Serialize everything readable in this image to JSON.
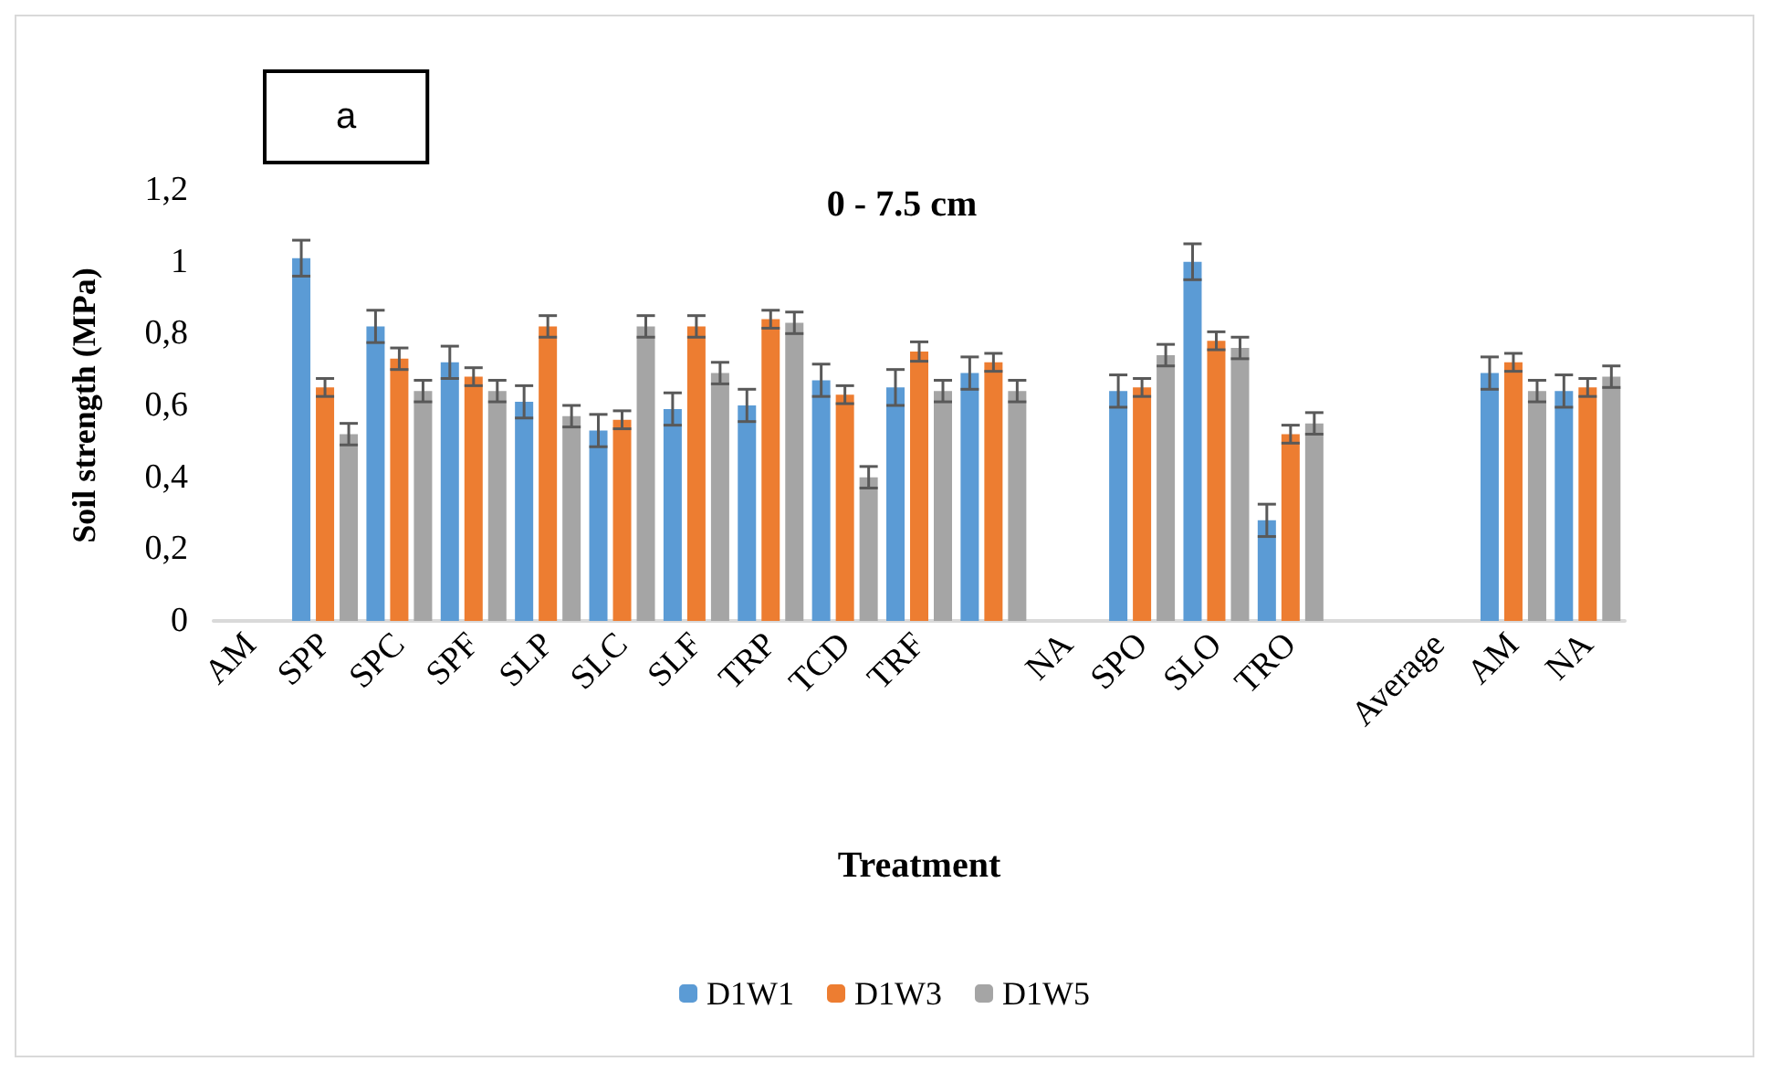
{
  "chart_data": {
    "type": "bar",
    "title": "0 - 7.5 cm",
    "xlabel": "Treatment",
    "ylabel": "Soil strength (MPa)",
    "annotations": [
      "a"
    ],
    "categories": [
      "AM",
      "SPP",
      "SPC",
      "SPF",
      "SLP",
      "SLC",
      "SLF",
      "TRP",
      "TCD",
      "TRF",
      null,
      "NA",
      "SPO",
      "SLO",
      "TRO",
      null,
      "Average",
      "AM",
      "NA"
    ],
    "series": [
      {
        "name": "D1W1",
        "color": "#5b9bd5",
        "values": [
          null,
          1.01,
          0.82,
          0.72,
          0.61,
          0.53,
          0.59,
          0.6,
          0.67,
          0.65,
          0.69,
          null,
          0.64,
          1.0,
          0.28,
          null,
          null,
          0.69,
          0.64
        ],
        "errors": [
          null,
          0.05,
          0.045,
          0.045,
          0.045,
          0.045,
          0.045,
          0.045,
          0.045,
          0.05,
          0.045,
          null,
          0.045,
          0.05,
          0.045,
          null,
          null,
          0.045,
          0.045
        ]
      },
      {
        "name": "D1W3",
        "color": "#ed7d31",
        "values": [
          null,
          0.65,
          0.73,
          0.68,
          0.82,
          0.56,
          0.82,
          0.84,
          0.63,
          0.75,
          0.72,
          null,
          0.65,
          0.78,
          0.52,
          null,
          null,
          0.72,
          0.65
        ],
        "errors": [
          null,
          0.025,
          0.03,
          0.025,
          0.03,
          0.025,
          0.03,
          0.025,
          0.025,
          0.027,
          0.025,
          null,
          0.025,
          0.025,
          0.025,
          null,
          null,
          0.025,
          0.025
        ]
      },
      {
        "name": "D1W5",
        "color": "#a5a5a5",
        "values": [
          null,
          0.52,
          0.64,
          0.64,
          0.57,
          0.82,
          0.69,
          0.83,
          0.4,
          0.64,
          0.64,
          null,
          0.74,
          0.76,
          0.55,
          null,
          null,
          0.64,
          0.68
        ],
        "errors": [
          null,
          0.03,
          0.03,
          0.03,
          0.03,
          0.03,
          0.03,
          0.03,
          0.03,
          0.03,
          0.03,
          null,
          0.03,
          0.03,
          0.03,
          null,
          null,
          0.03,
          0.03
        ]
      }
    ],
    "ylim": [
      0,
      1.2
    ],
    "yticks": [
      0,
      {
        "value": 0.2,
        "label": "0,2"
      },
      {
        "value": 0.4,
        "label": "0,4"
      },
      {
        "value": 0.6,
        "label": "0,6"
      },
      {
        "value": 0.8,
        "label": "0,8"
      },
      1,
      {
        "value": 1.2,
        "label": "1,2"
      }
    ],
    "grid": false,
    "legend": "bottom"
  }
}
